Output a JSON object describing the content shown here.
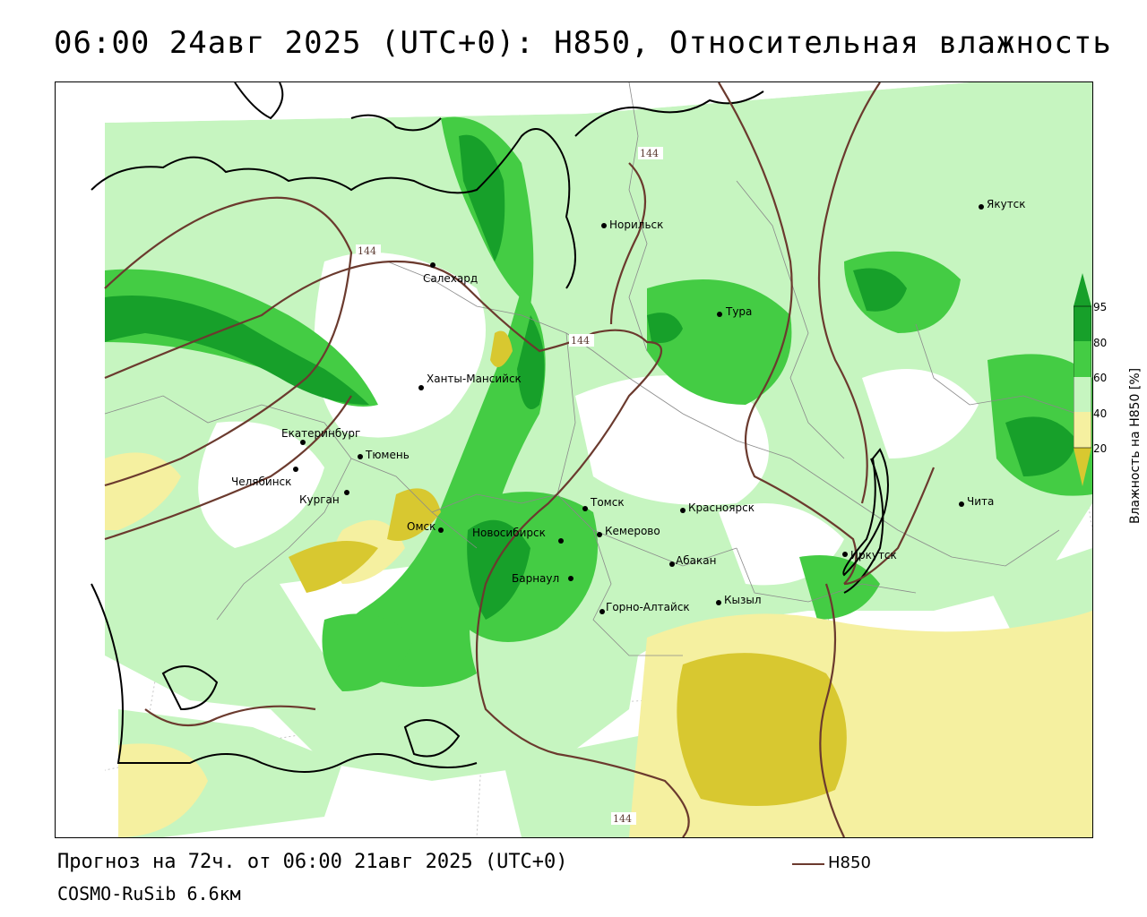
{
  "title": "06:00 24авг 2025 (UTC+0): H850, Относительная влажность",
  "colors": {
    "green_dark": "#17a02a",
    "green_mid": "#44cc44",
    "green_light": "#c6f5c0",
    "yellow_light": "#f5f0a0",
    "yellow_dark": "#d8c830",
    "isoline": "#6b3a2e",
    "coast": "#000000",
    "borders": "#9a9a9a"
  },
  "cities": [
    {
      "name": "Салехард"
    },
    {
      "name": "Норильск"
    },
    {
      "name": "Якутск"
    },
    {
      "name": "Тура"
    },
    {
      "name": "Ханты-Мансийск"
    },
    {
      "name": "Екатеринбург"
    },
    {
      "name": "Тюмень"
    },
    {
      "name": "Челябинск"
    },
    {
      "name": "Курган"
    },
    {
      "name": "Омск"
    },
    {
      "name": "Новосибирск"
    },
    {
      "name": "Томск"
    },
    {
      "name": "Кемерово"
    },
    {
      "name": "Красноярск"
    },
    {
      "name": "Барнаул"
    },
    {
      "name": "Абакан"
    },
    {
      "name": "Горно-Алтайск"
    },
    {
      "name": "Кызыл"
    },
    {
      "name": "Иркутск"
    },
    {
      "name": "Чита"
    }
  ],
  "isoline_labels": [
    "144",
    "144",
    "144",
    "144"
  ],
  "colorbar": {
    "title": "Влажность на H850 [%]",
    "ticks": [
      "95",
      "80",
      "60",
      "40",
      "20"
    ]
  },
  "footer": {
    "forecast": "Прогноз на 72ч. от 06:00 21авг 2025 (UTC+0)",
    "model": "COSMO-RuSib 6.6км",
    "legend_label": "H850"
  }
}
